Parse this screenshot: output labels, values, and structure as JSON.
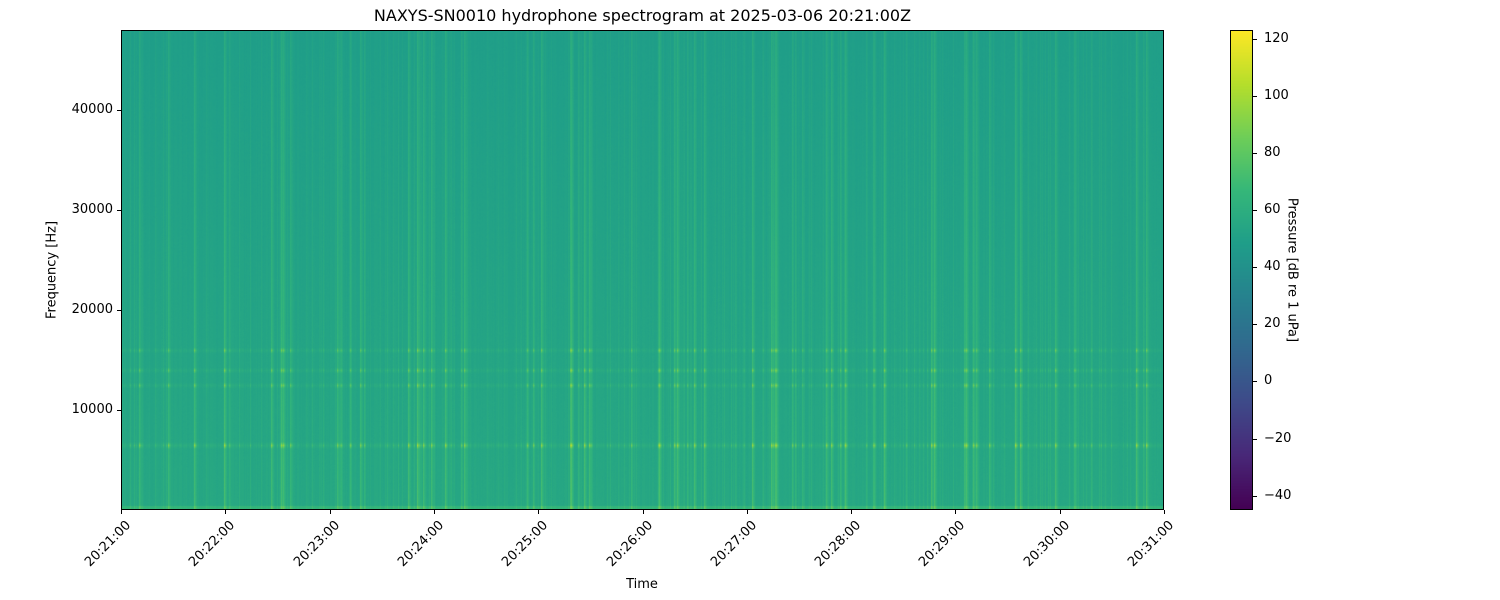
{
  "chart_data": {
    "type": "heatmap",
    "title": "NAXYS-SN0010 hydrophone spectrogram at 2025-03-06 20:21:00Z",
    "xlabel": "Time",
    "ylabel": "Frequency [Hz]",
    "x_ticks": [
      "20:21:00",
      "20:22:00",
      "20:23:00",
      "20:24:00",
      "20:25:00",
      "20:26:00",
      "20:27:00",
      "20:28:00",
      "20:29:00",
      "20:30:00",
      "20:31:00"
    ],
    "xlim": [
      "20:21:00",
      "20:31:00"
    ],
    "y_ticks": [
      10000,
      20000,
      30000,
      40000
    ],
    "ylim": [
      0,
      48000
    ],
    "colormap": "viridis",
    "colorbar": {
      "label": "Pressure [dB re 1 uPa]",
      "ticks": [
        -40,
        -20,
        0,
        20,
        40,
        60,
        80,
        100,
        120
      ],
      "range": [
        -45,
        123
      ]
    },
    "features": {
      "background_level_db": 50,
      "tonal_bands_hz": [
        6500,
        12500,
        14000,
        16000
      ],
      "low_frequency_band_hz": [
        0,
        500
      ]
    }
  }
}
